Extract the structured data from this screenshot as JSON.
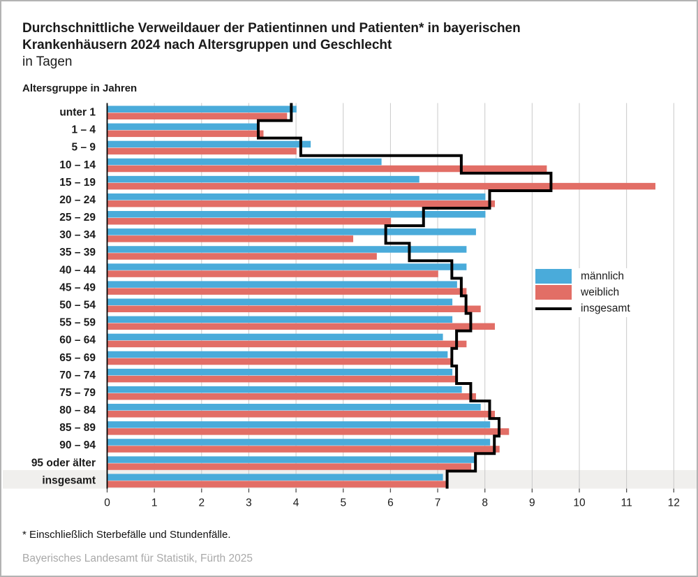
{
  "title": {
    "line1": "Durchschnittliche Verweildauer der Patientinnen und Patienten* in bayerischen",
    "line2": "Krankenhäusern 2024 nach Altersgruppen und Geschlecht",
    "subtitle": "in Tagen"
  },
  "axis_title": "Altersgruppe in Jahren",
  "footnote": "* Einschließlich Sterbefälle und Stundenfälle.",
  "source": "Bayerisches Landesamt für Statistik, Fürth 2025",
  "legend": {
    "items": [
      {
        "label": "männlich",
        "type": "swatch",
        "color": "#4aabda"
      },
      {
        "label": "weiblich",
        "type": "swatch",
        "color": "#e26e66"
      },
      {
        "label": "insgesamt",
        "type": "line",
        "color": "#000000"
      }
    ]
  },
  "colors": {
    "male": "#4aabda",
    "female": "#e26e66",
    "total_line": "#000000",
    "grid": "#c9c9c9",
    "axis": "#000000",
    "highlight_band": "#f0efed",
    "tick": "#4d4d4d",
    "text": "#1a1a1a"
  },
  "chart_data": {
    "type": "bar",
    "orientation": "horizontal",
    "title": "Durchschnittliche Verweildauer der Patientinnen und Patienten in bayerischen Krankenhäusern 2024 nach Altersgruppen und Geschlecht (in Tagen)",
    "xlabel": "Tage",
    "ylabel": "Altersgruppe in Jahren",
    "xlim": [
      0,
      12
    ],
    "xticks": [
      0,
      1,
      2,
      3,
      4,
      5,
      6,
      7,
      8,
      9,
      10,
      11,
      12
    ],
    "grid": true,
    "legend_position": "middle-right",
    "highlighted_category": "insgesamt",
    "categories": [
      "unter 1",
      "1 – 4",
      "5 – 9",
      "10 – 14",
      "15 – 19",
      "20 – 24",
      "25 – 29",
      "30 – 34",
      "35 – 39",
      "40 – 44",
      "45 – 49",
      "50 – 54",
      "55 – 59",
      "60 – 64",
      "65 – 69",
      "70 – 74",
      "75 – 79",
      "80 – 84",
      "85 – 89",
      "90 – 94",
      "95 oder älter",
      "insgesamt"
    ],
    "series": [
      {
        "name": "männlich",
        "style": "bar",
        "color": "#4aabda",
        "values": [
          4.0,
          3.2,
          4.3,
          5.8,
          6.6,
          8.0,
          8.0,
          7.8,
          7.6,
          7.6,
          7.4,
          7.3,
          7.3,
          7.1,
          7.2,
          7.3,
          7.5,
          7.9,
          8.1,
          8.1,
          7.8,
          7.1
        ]
      },
      {
        "name": "weiblich",
        "style": "bar",
        "color": "#e26e66",
        "values": [
          3.8,
          3.3,
          4.0,
          9.3,
          11.6,
          8.2,
          6.0,
          5.2,
          5.7,
          7.0,
          7.6,
          7.9,
          8.2,
          7.6,
          7.3,
          7.4,
          7.8,
          8.2,
          8.5,
          8.3,
          7.7,
          7.2
        ]
      },
      {
        "name": "insgesamt",
        "style": "step-line",
        "color": "#000000",
        "values": [
          3.9,
          3.2,
          4.1,
          7.5,
          9.4,
          8.1,
          6.7,
          5.9,
          6.4,
          7.3,
          7.5,
          7.6,
          7.7,
          7.4,
          7.3,
          7.4,
          7.7,
          8.1,
          8.3,
          8.2,
          7.8,
          7.2
        ]
      }
    ]
  }
}
